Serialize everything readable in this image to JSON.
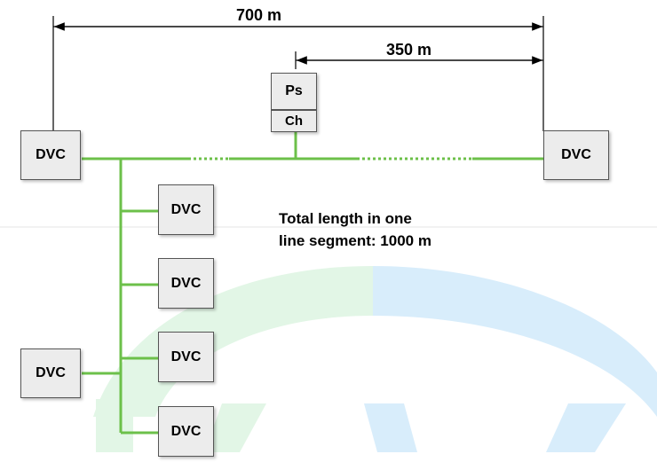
{
  "dimensions": {
    "total_label": "700 m",
    "half_label": "350 m"
  },
  "power_supply": {
    "top_label": "Ps",
    "bottom_label": "Ch"
  },
  "devices": {
    "left_main": "DVC",
    "right_main": "DVC",
    "branch_1": "DVC",
    "branch_2": "DVC",
    "branch_3": "DVC",
    "branch_4": "DVC",
    "lower_left": "DVC"
  },
  "note": {
    "line1": "Total length in one",
    "line2": "line segment: 1000 m"
  },
  "colors": {
    "line": "#6cc04a",
    "box_fill": "#ececec",
    "watermark_green": "#dff5e3",
    "watermark_blue": "#d6ecfa"
  }
}
